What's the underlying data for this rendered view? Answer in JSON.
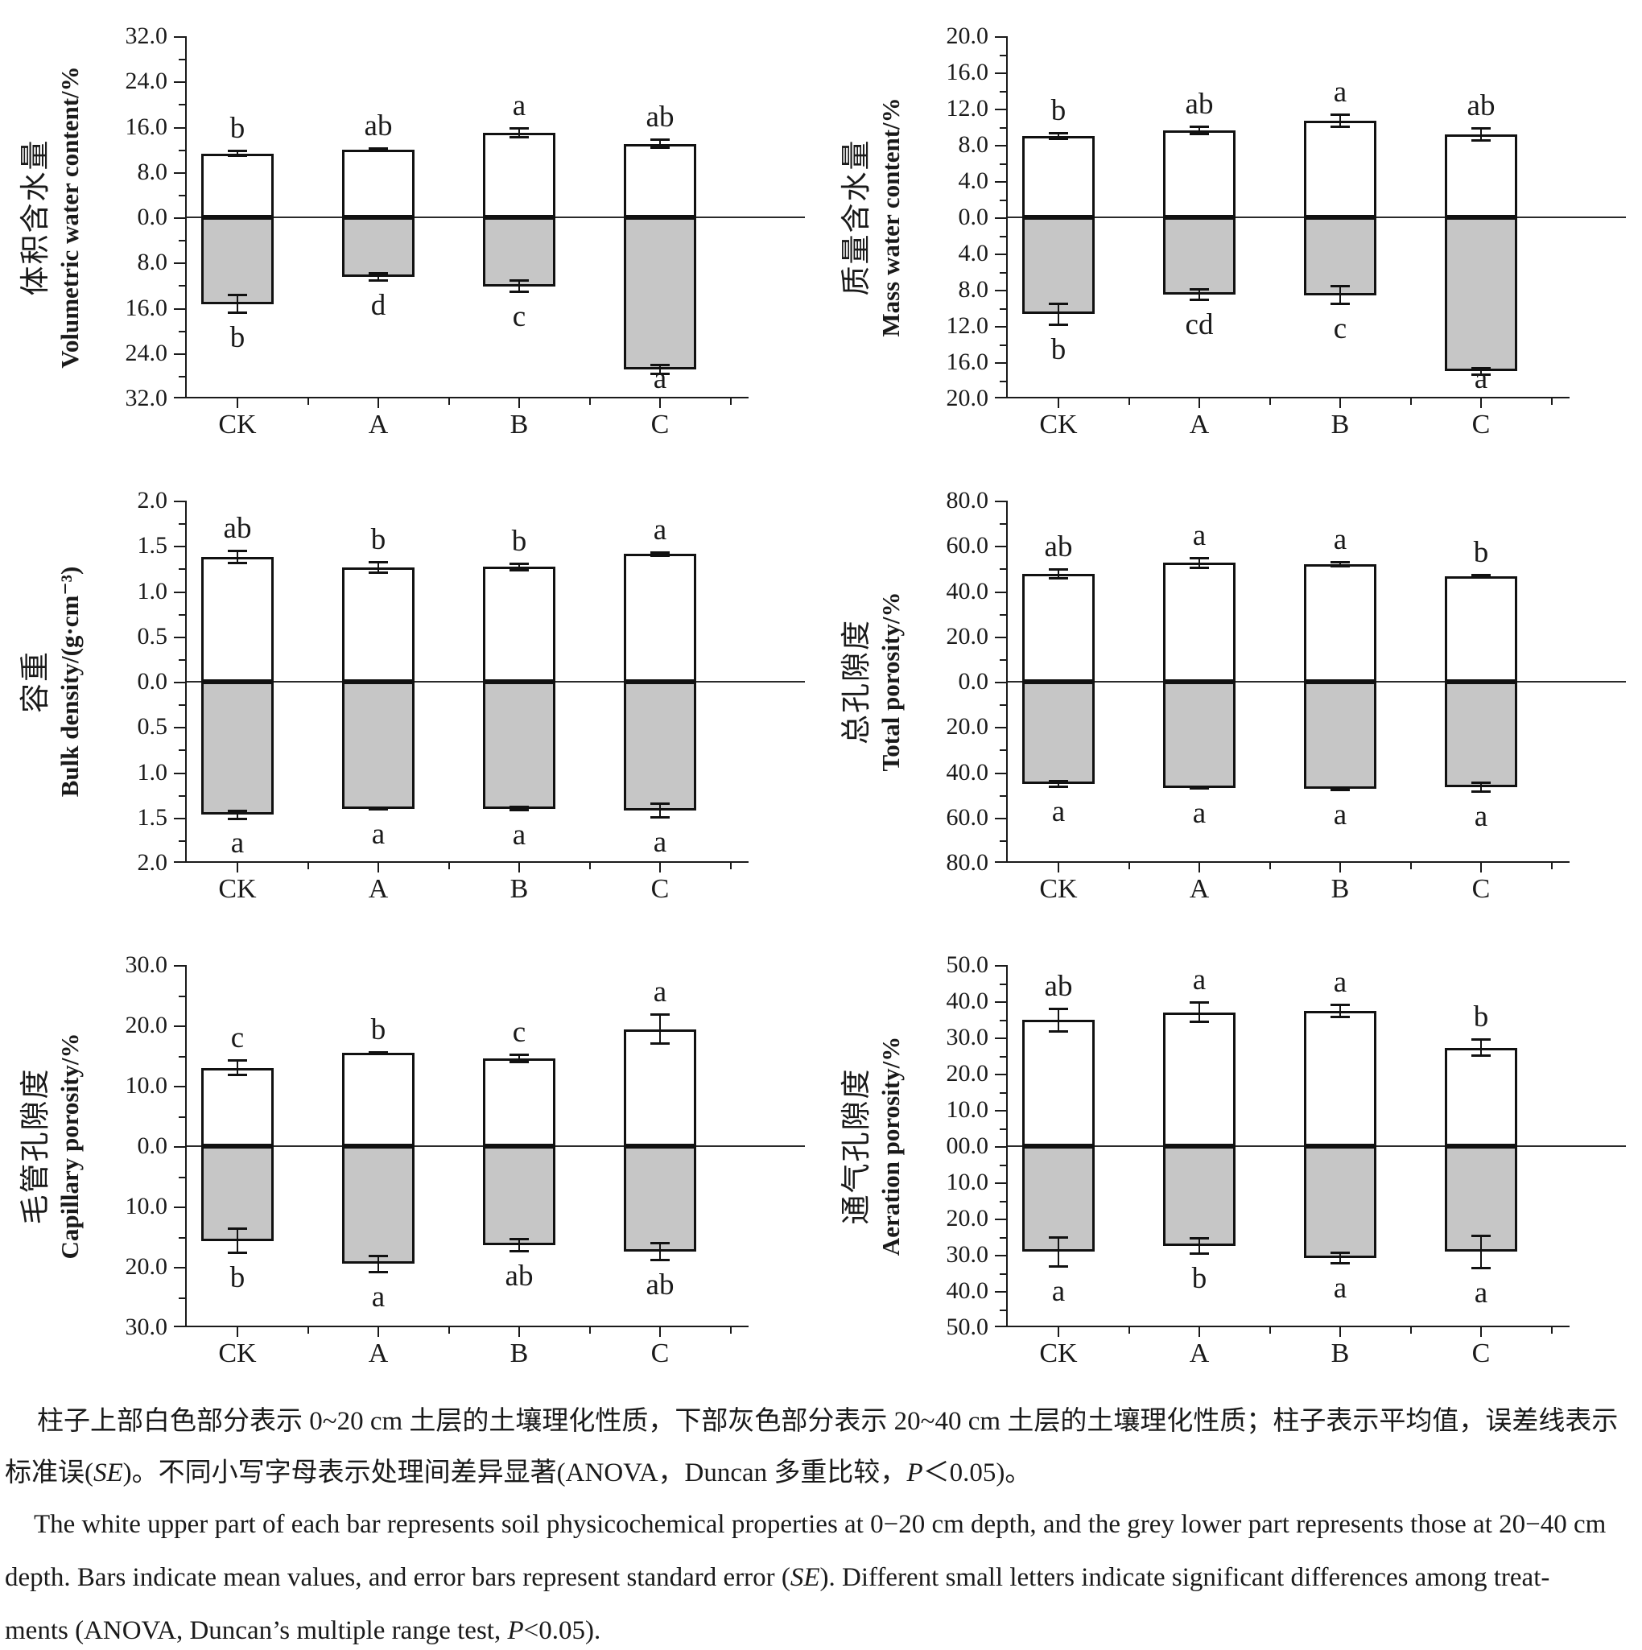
{
  "figure": {
    "treatments": [
      "CK",
      "A",
      "B",
      "C"
    ],
    "depth_upper_label": "0~20 cm",
    "depth_lower_label": "20~40 cm",
    "colors": {
      "upper_fill": "#ffffff",
      "lower_fill": "#c6c6c6",
      "line": "#1a1a1a"
    }
  },
  "chart_data": [
    {
      "type": "bar",
      "id": "volumetric-water-content",
      "ylabel_zh": "体积含水量",
      "ylabel_en": "Volumetric water content/%",
      "axis_max": 32,
      "tick_labels": [
        "32.0",
        "24.0",
        "16.0",
        "8.0",
        "0.0",
        "8.0",
        "16.0",
        "24.0",
        "32.0"
      ],
      "categories": [
        "CK",
        "A",
        "B",
        "C"
      ],
      "upper": {
        "depth": "0-20 cm",
        "values": [
          11.3,
          12.0,
          15.0,
          13.0
        ],
        "se": [
          0.6,
          0.35,
          1.0,
          0.9
        ],
        "letters": [
          "b",
          "ab",
          "a",
          "ab"
        ]
      },
      "lower": {
        "depth": "20-40 cm",
        "values": [
          15.3,
          10.5,
          12.2,
          26.9
        ],
        "se": [
          1.8,
          0.9,
          1.2,
          1.0
        ],
        "letters": [
          "b",
          "d",
          "c",
          "a"
        ]
      }
    },
    {
      "type": "bar",
      "id": "mass-water-content",
      "ylabel_zh": "质量含水量",
      "ylabel_en": "Mass water content/%",
      "axis_max": 20,
      "tick_labels": [
        "20.0",
        "16.0",
        "12.0",
        "8.0",
        "4.0",
        "0.0",
        "4.0",
        "8.0",
        "12.0",
        "16.0",
        "20.0"
      ],
      "categories": [
        "CK",
        "A",
        "B",
        "C"
      ],
      "upper": {
        "depth": "0-20 cm",
        "values": [
          9.0,
          9.6,
          10.7,
          9.2
        ],
        "se": [
          0.45,
          0.5,
          0.8,
          0.8
        ],
        "letters": [
          "b",
          "ab",
          "a",
          "ab"
        ]
      },
      "lower": {
        "depth": "20-40 cm",
        "values": [
          10.7,
          8.5,
          8.6,
          17.0
        ],
        "se": [
          1.3,
          0.7,
          1.1,
          0.5
        ],
        "letters": [
          "b",
          "cd",
          "c",
          "a"
        ]
      }
    },
    {
      "type": "bar",
      "id": "bulk-density",
      "ylabel_zh": "容重",
      "ylabel_en": "Bulk density/(g·cm⁻³)",
      "axis_max": 2,
      "tick_labels": [
        "2.0",
        "1.5",
        "1.0",
        "0.5",
        "0.0",
        "0.5",
        "1.0",
        "1.5",
        "2.0"
      ],
      "categories": [
        "CK",
        "A",
        "B",
        "C"
      ],
      "upper": {
        "depth": "0-20 cm",
        "values": [
          1.38,
          1.26,
          1.27,
          1.41
        ],
        "se": [
          0.08,
          0.07,
          0.05,
          0.03
        ],
        "letters": [
          "ab",
          "b",
          "b",
          "a"
        ]
      },
      "lower": {
        "depth": "20-40 cm",
        "values": [
          1.47,
          1.4,
          1.4,
          1.42
        ],
        "se": [
          0.06,
          0.02,
          0.03,
          0.09
        ],
        "letters": [
          "a",
          "a",
          "a",
          "a"
        ]
      }
    },
    {
      "type": "bar",
      "id": "total-porosity",
      "ylabel_zh": "总孔隙度",
      "ylabel_en": "Total porosity/%",
      "axis_max": 80,
      "tick_labels": [
        "80.0",
        "60.0",
        "40.0",
        "20.0",
        "0.0",
        "20.0",
        "40.0",
        "60.0",
        "80.0"
      ],
      "categories": [
        "CK",
        "A",
        "B",
        "C"
      ],
      "upper": {
        "depth": "0-20 cm",
        "values": [
          47.6,
          52.5,
          52.0,
          46.5
        ],
        "se": [
          2.6,
          2.6,
          1.5,
          1.0
        ],
        "letters": [
          "ab",
          "a",
          "a",
          "b"
        ]
      },
      "lower": {
        "depth": "20-40 cm",
        "values": [
          45.0,
          47.0,
          47.3,
          46.6
        ],
        "se": [
          1.8,
          0.6,
          1.0,
          2.6
        ],
        "letters": [
          "a",
          "a",
          "a",
          "a"
        ]
      }
    },
    {
      "type": "bar",
      "id": "capillary-porosity",
      "ylabel_zh": "毛管孔隙度",
      "ylabel_en": "Capillary porosity/%",
      "axis_max": 30,
      "tick_labels": [
        "30.0",
        "20.0",
        "10.0",
        "0.0",
        "10.0",
        "20.0",
        "30.0"
      ],
      "categories": [
        "CK",
        "A",
        "B",
        "C"
      ],
      "upper": {
        "depth": "0-20 cm",
        "values": [
          13.0,
          15.5,
          14.6,
          19.4
        ],
        "se": [
          1.4,
          0.3,
          0.8,
          2.6
        ],
        "letters": [
          "c",
          "b",
          "c",
          "a"
        ]
      },
      "lower": {
        "depth": "20-40 cm",
        "values": [
          15.7,
          19.5,
          16.4,
          17.5
        ],
        "se": [
          2.2,
          1.5,
          1.2,
          1.6
        ],
        "letters": [
          "b",
          "a",
          "ab",
          "ab"
        ]
      }
    },
    {
      "type": "bar",
      "id": "aeration-porosity",
      "ylabel_zh": "通气孔隙度",
      "ylabel_en": "Aeration porosity/%",
      "axis_max": 50,
      "tick_labels": [
        "50.0",
        "40.0",
        "30.0",
        "20.0",
        "10.0",
        "00.0",
        "10.0",
        "20.0",
        "30.0",
        "40.0",
        "50.0"
      ],
      "categories": [
        "CK",
        "A",
        "B",
        "C"
      ],
      "upper": {
        "depth": "0-20 cm",
        "values": [
          34.8,
          37.0,
          37.4,
          27.2
        ],
        "se": [
          3.5,
          3.0,
          2.0,
          2.5
        ],
        "letters": [
          "ab",
          "a",
          "a",
          "b"
        ]
      },
      "lower": {
        "depth": "20-40 cm",
        "values": [
          29.2,
          27.6,
          30.9,
          29.2
        ],
        "se": [
          4.3,
          2.4,
          1.7,
          4.8
        ],
        "letters": [
          "a",
          "b",
          "a",
          "a"
        ]
      }
    }
  ],
  "caption": {
    "zh_lines": [
      [
        {
          "t": "柱子上部白色部分表示 0~20 cm 土层的土壤理化性质，下部灰色部分表示 20~40 cm 土层的土壤理化性质；柱子表示平均值，误差线表示",
          "i": false
        }
      ],
      [
        {
          "t": "标准误(",
          "i": false
        },
        {
          "t": "SE",
          "i": true
        },
        {
          "t": ")。不同小写字母表示处理间差异显著(ANOVA，Duncan 多重比较，",
          "i": false
        },
        {
          "t": "P",
          "i": true
        },
        {
          "t": "＜0.05)。",
          "i": false
        }
      ]
    ],
    "en_lines": [
      [
        {
          "t": "The white upper part of each bar represents soil physicochemical properties at 0−20 cm depth, and the grey lower part represents those at 20−40 cm",
          "i": false
        }
      ],
      [
        {
          "t": "depth. Bars indicate mean values, and error bars represent standard error (",
          "i": false
        },
        {
          "t": "SE",
          "i": true
        },
        {
          "t": "). Different small letters indicate significant differences among treat-",
          "i": false
        }
      ],
      [
        {
          "t": "ments (ANOVA, Duncan’s multiple range test, ",
          "i": false
        },
        {
          "t": "P",
          "i": true
        },
        {
          "t": "<0.05).",
          "i": false
        }
      ]
    ]
  }
}
